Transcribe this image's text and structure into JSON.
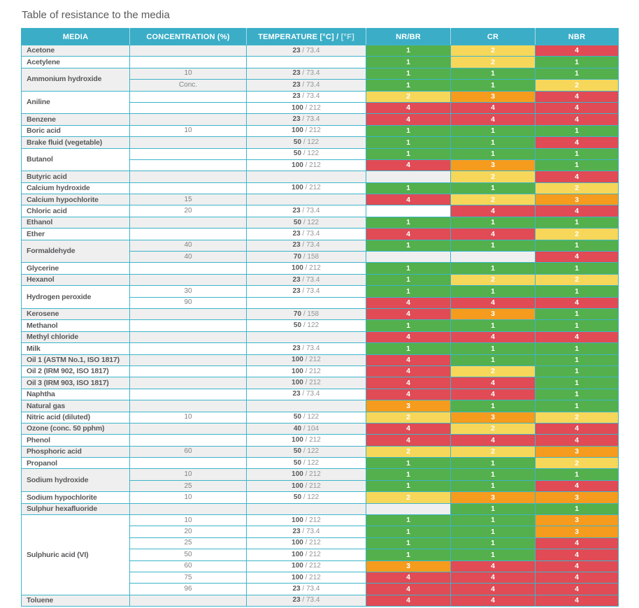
{
  "title": "Table of resistance to the media",
  "header": {
    "media": "MEDIA",
    "concentration": "CONCENTRATION (%)",
    "temperature_main": "TEMPERATURE [°C] /",
    "temperature_sub": "[°F]",
    "polymers": [
      "NR/BR",
      "CR",
      "NBR"
    ]
  },
  "colors": {
    "header_bg": "#3badc7",
    "border": "#3db5ca",
    "row_gray": "#efefef",
    "row_white": "#ffffff",
    "text_dark": "#58595b",
    "text_gray": "#808285",
    "rating_1": "#53b04c",
    "rating_2": "#f6d75a",
    "rating_3": "#f59b1d",
    "rating_4": "#e04b55"
  },
  "rating_colors": {
    "1": "#53b04c",
    "2": "#f6d75a",
    "3": "#f59b1d",
    "4": "#e04b55"
  },
  "groups": [
    {
      "media": "Acetone",
      "shade": "gray",
      "rows": [
        {
          "conc": "",
          "temp_c": "23",
          "temp_f": "73.4",
          "ratings": [
            1,
            2,
            4
          ]
        }
      ]
    },
    {
      "media": "Acetylene",
      "shade": "white",
      "rows": [
        {
          "conc": "",
          "temp_c": null,
          "temp_f": null,
          "ratings": [
            1,
            2,
            1
          ]
        }
      ]
    },
    {
      "media": "Ammonium hydroxide",
      "shade": "gray",
      "rows": [
        {
          "conc": "10",
          "temp_c": "23",
          "temp_f": "73.4",
          "ratings": [
            1,
            1,
            1
          ]
        },
        {
          "conc": "Conc.",
          "temp_c": "23",
          "temp_f": "73.4",
          "ratings": [
            1,
            1,
            2
          ]
        }
      ]
    },
    {
      "media": "Aniline",
      "shade": "white",
      "rows": [
        {
          "conc": "",
          "temp_c": "23",
          "temp_f": "73.4",
          "ratings": [
            2,
            3,
            4
          ]
        },
        {
          "conc": "",
          "temp_c": "100",
          "temp_f": "212",
          "ratings": [
            4,
            4,
            4
          ]
        }
      ]
    },
    {
      "media": "Benzene",
      "shade": "gray",
      "rows": [
        {
          "conc": "",
          "temp_c": "23",
          "temp_f": "73.4",
          "ratings": [
            4,
            4,
            4
          ]
        }
      ]
    },
    {
      "media": "Boric acid",
      "shade": "white",
      "rows": [
        {
          "conc": "10",
          "temp_c": "100",
          "temp_f": "212",
          "ratings": [
            1,
            1,
            1
          ]
        }
      ]
    },
    {
      "media": "Brake fluid (vegetable)",
      "shade": "gray",
      "rows": [
        {
          "conc": "",
          "temp_c": "50",
          "temp_f": "122",
          "ratings": [
            1,
            1,
            4
          ]
        }
      ]
    },
    {
      "media": "Butanol",
      "shade": "white",
      "rows": [
        {
          "conc": "",
          "temp_c": "50",
          "temp_f": "122",
          "ratings": [
            1,
            1,
            1
          ]
        },
        {
          "conc": "",
          "temp_c": "100",
          "temp_f": "212",
          "ratings": [
            4,
            3,
            1
          ]
        }
      ]
    },
    {
      "media": "Butyric acid",
      "shade": "gray",
      "rows": [
        {
          "conc": "",
          "temp_c": null,
          "temp_f": null,
          "ratings": [
            null,
            2,
            4
          ]
        }
      ]
    },
    {
      "media": "Calcium hydroxide",
      "shade": "white",
      "rows": [
        {
          "conc": "",
          "temp_c": "100",
          "temp_f": "212",
          "ratings": [
            1,
            1,
            2
          ]
        }
      ]
    },
    {
      "media": "Calcium hypochlorite",
      "shade": "gray",
      "rows": [
        {
          "conc": "15",
          "temp_c": null,
          "temp_f": null,
          "ratings": [
            4,
            2,
            3
          ]
        }
      ]
    },
    {
      "media": "Chloric acid",
      "shade": "white",
      "rows": [
        {
          "conc": "20",
          "temp_c": "23",
          "temp_f": "73.4",
          "ratings": [
            null,
            4,
            4
          ]
        }
      ]
    },
    {
      "media": "Ethanol",
      "shade": "gray",
      "rows": [
        {
          "conc": "",
          "temp_c": "50",
          "temp_f": "122",
          "ratings": [
            1,
            1,
            1
          ]
        }
      ]
    },
    {
      "media": "Ether",
      "shade": "white",
      "rows": [
        {
          "conc": "",
          "temp_c": "23",
          "temp_f": "73.4",
          "ratings": [
            4,
            4,
            2
          ]
        }
      ]
    },
    {
      "media": "Formaldehyde",
      "shade": "gray",
      "rows": [
        {
          "conc": "40",
          "temp_c": "23",
          "temp_f": "73.4",
          "ratings": [
            1,
            1,
            1
          ]
        },
        {
          "conc": "40",
          "temp_c": "70",
          "temp_f": "158",
          "ratings": [
            null,
            null,
            4
          ]
        }
      ]
    },
    {
      "media": "Glycerine",
      "shade": "white",
      "rows": [
        {
          "conc": "",
          "temp_c": "100",
          "temp_f": "212",
          "ratings": [
            1,
            1,
            1
          ]
        }
      ]
    },
    {
      "media": "Hexanol",
      "shade": "gray",
      "rows": [
        {
          "conc": "",
          "temp_c": "23",
          "temp_f": "73.4",
          "ratings": [
            1,
            2,
            2
          ]
        }
      ]
    },
    {
      "media": "Hydrogen peroxide",
      "shade": "white",
      "rows": [
        {
          "conc": "30",
          "temp_c": "23",
          "temp_f": "73.4",
          "ratings": [
            1,
            1,
            1
          ]
        },
        {
          "conc": "90",
          "temp_c": null,
          "temp_f": null,
          "ratings": [
            4,
            4,
            4
          ]
        }
      ]
    },
    {
      "media": "Kerosene",
      "shade": "gray",
      "rows": [
        {
          "conc": "",
          "temp_c": "70",
          "temp_f": "158",
          "ratings": [
            4,
            3,
            1
          ]
        }
      ]
    },
    {
      "media": "Methanol",
      "shade": "white",
      "rows": [
        {
          "conc": "",
          "temp_c": "50",
          "temp_f": "122",
          "ratings": [
            1,
            1,
            1
          ]
        }
      ]
    },
    {
      "media": "Methyl chloride",
      "shade": "gray",
      "rows": [
        {
          "conc": "",
          "temp_c": null,
          "temp_f": null,
          "ratings": [
            4,
            4,
            4
          ]
        }
      ]
    },
    {
      "media": "Milk",
      "shade": "white",
      "rows": [
        {
          "conc": "",
          "temp_c": "23",
          "temp_f": "73.4",
          "ratings": [
            1,
            1,
            1
          ]
        }
      ]
    },
    {
      "media": "Oil 1 (ASTM No.1, ISO 1817)",
      "shade": "gray",
      "rows": [
        {
          "conc": "",
          "temp_c": "100",
          "temp_f": "212",
          "ratings": [
            4,
            1,
            1
          ]
        }
      ]
    },
    {
      "media": "Oil 2 (IRM 902, ISO 1817)",
      "shade": "white",
      "rows": [
        {
          "conc": "",
          "temp_c": "100",
          "temp_f": "212",
          "ratings": [
            4,
            2,
            1
          ]
        }
      ]
    },
    {
      "media": "Oil 3 (IRM 903, ISO 1817)",
      "shade": "gray",
      "rows": [
        {
          "conc": "",
          "temp_c": "100",
          "temp_f": "212",
          "ratings": [
            4,
            4,
            1
          ]
        }
      ]
    },
    {
      "media": "Naphtha",
      "shade": "white",
      "rows": [
        {
          "conc": "",
          "temp_c": "23",
          "temp_f": "73.4",
          "ratings": [
            4,
            4,
            1
          ]
        }
      ]
    },
    {
      "media": "Natural gas",
      "shade": "gray",
      "rows": [
        {
          "conc": "",
          "temp_c": null,
          "temp_f": null,
          "ratings": [
            3,
            1,
            1
          ]
        }
      ]
    },
    {
      "media": "Nitric acid (diluted)",
      "shade": "white",
      "rows": [
        {
          "conc": "10",
          "temp_c": "50",
          "temp_f": "122",
          "ratings": [
            2,
            3,
            2
          ]
        }
      ]
    },
    {
      "media": "Ozone (conc. 50 pphm)",
      "shade": "gray",
      "rows": [
        {
          "conc": "",
          "temp_c": "40",
          "temp_f": "104",
          "ratings": [
            4,
            2,
            4
          ]
        }
      ]
    },
    {
      "media": "Phenol",
      "shade": "white",
      "rows": [
        {
          "conc": "",
          "temp_c": "100",
          "temp_f": "212",
          "ratings": [
            4,
            4,
            4
          ]
        }
      ]
    },
    {
      "media": "Phosphoric acid",
      "shade": "gray",
      "rows": [
        {
          "conc": "60",
          "temp_c": "50",
          "temp_f": "122",
          "ratings": [
            2,
            2,
            3
          ]
        }
      ]
    },
    {
      "media": "Propanol",
      "shade": "white",
      "rows": [
        {
          "conc": "",
          "temp_c": "50",
          "temp_f": "122",
          "ratings": [
            1,
            1,
            2
          ]
        }
      ]
    },
    {
      "media": "Sodium hydroxide",
      "shade": "gray",
      "rows": [
        {
          "conc": "10",
          "temp_c": "100",
          "temp_f": "212",
          "ratings": [
            1,
            1,
            1
          ]
        },
        {
          "conc": "25",
          "temp_c": "100",
          "temp_f": "212",
          "ratings": [
            1,
            1,
            4
          ]
        }
      ]
    },
    {
      "media": "Sodium hypochlorite",
      "shade": "white",
      "rows": [
        {
          "conc": "10",
          "temp_c": "50",
          "temp_f": "122",
          "ratings": [
            2,
            3,
            3
          ]
        }
      ]
    },
    {
      "media": "Sulphur hexafluoride",
      "shade": "gray",
      "rows": [
        {
          "conc": "",
          "temp_c": null,
          "temp_f": null,
          "ratings": [
            null,
            1,
            1
          ]
        }
      ]
    },
    {
      "media": "Sulphuric acid (VI)",
      "shade": "white",
      "rows": [
        {
          "conc": "10",
          "temp_c": "100",
          "temp_f": "212",
          "ratings": [
            1,
            1,
            3
          ]
        },
        {
          "conc": "20",
          "temp_c": "23",
          "temp_f": "73.4",
          "ratings": [
            1,
            1,
            3
          ]
        },
        {
          "conc": "25",
          "temp_c": "100",
          "temp_f": "212",
          "ratings": [
            1,
            1,
            4
          ]
        },
        {
          "conc": "50",
          "temp_c": "100",
          "temp_f": "212",
          "ratings": [
            1,
            1,
            4
          ]
        },
        {
          "conc": "60",
          "temp_c": "100",
          "temp_f": "212",
          "ratings": [
            3,
            4,
            4
          ]
        },
        {
          "conc": "75",
          "temp_c": "100",
          "temp_f": "212",
          "ratings": [
            4,
            4,
            4
          ]
        },
        {
          "conc": "96",
          "temp_c": "23",
          "temp_f": "73.4",
          "ratings": [
            4,
            4,
            4
          ]
        }
      ]
    },
    {
      "media": "Toluene",
      "shade": "gray",
      "rows": [
        {
          "conc": "",
          "temp_c": "23",
          "temp_f": "73.4",
          "ratings": [
            4,
            4,
            4
          ]
        }
      ]
    }
  ]
}
